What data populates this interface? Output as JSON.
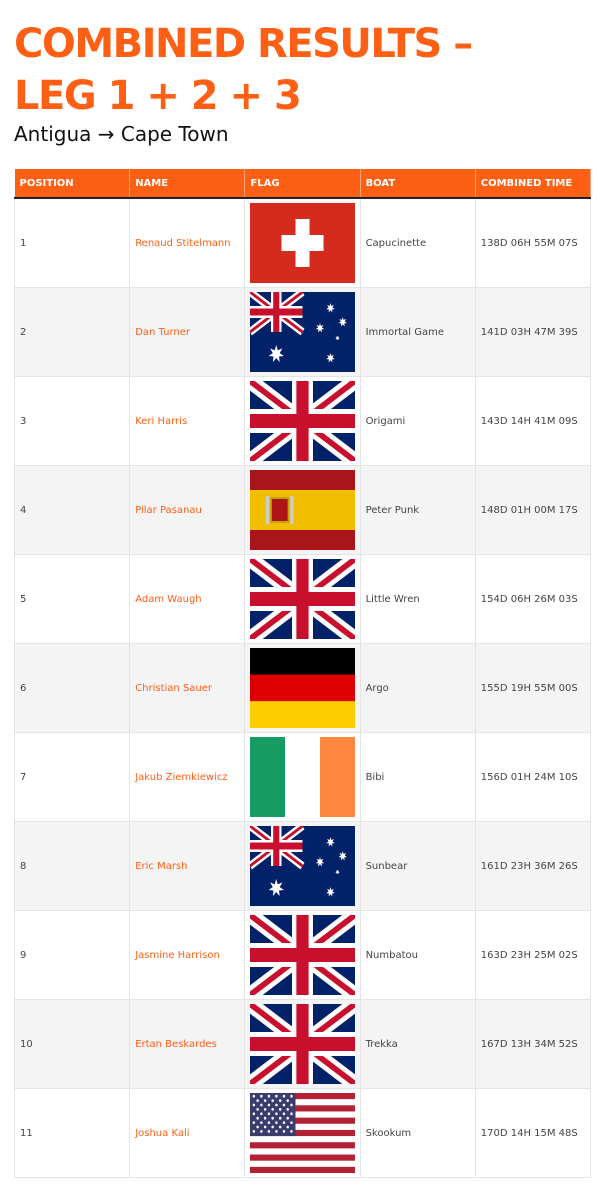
{
  "title_line1": "COMBINED RESULTS –",
  "title_line2": "LEG 1 + 2 + 3",
  "subtitle": "Antigua → Cape Town",
  "colors": {
    "accent": "#fd5f14"
  },
  "table": {
    "headers": [
      "POSITION",
      "NAME",
      "FLAG",
      "BOAT",
      "COMBINED TIME"
    ],
    "rows": [
      {
        "position": "1",
        "name": "Renaud Stitelmann",
        "flag": "switzerland",
        "boat": "Capucinette",
        "time": "138D 06H 55M 07S"
      },
      {
        "position": "2",
        "name": "Dan Turner",
        "flag": "australia",
        "boat": "Immortal Game",
        "time": "141D 03H 47M 39S"
      },
      {
        "position": "3",
        "name": "Keri Harris",
        "flag": "united-kingdom",
        "boat": "Origami",
        "time": "143D 14H 41M 09S"
      },
      {
        "position": "4",
        "name": "Pilar Pasanau",
        "flag": "spain",
        "boat": "Peter Punk",
        "time": "148D 01H 00M 17S"
      },
      {
        "position": "5",
        "name": "Adam Waugh",
        "flag": "united-kingdom",
        "boat": "Little Wren",
        "time": "154D 06H 26M 03S"
      },
      {
        "position": "6",
        "name": "Christian Sauer",
        "flag": "germany",
        "boat": "Argo",
        "time": "155D 19H 55M 00S"
      },
      {
        "position": "7",
        "name": "Jakub Ziemkiewicz",
        "flag": "ireland",
        "boat": "Bibi",
        "time": "156D 01H 24M 10S"
      },
      {
        "position": "8",
        "name": "Eric Marsh",
        "flag": "australia",
        "boat": "Sunbear",
        "time": "161D 23H 36M 26S"
      },
      {
        "position": "9",
        "name": "Jasmine Harrison",
        "flag": "united-kingdom",
        "boat": "Numbatou",
        "time": "163D 23H 25M 02S"
      },
      {
        "position": "10",
        "name": "Ertan Beskardes",
        "flag": "united-kingdom",
        "boat": "Trekka",
        "time": "167D 13H 34M 52S"
      },
      {
        "position": "11",
        "name": "Joshua Kali",
        "flag": "united-states",
        "boat": "Skookum",
        "time": "170D 14H 15M 48S"
      }
    ]
  }
}
